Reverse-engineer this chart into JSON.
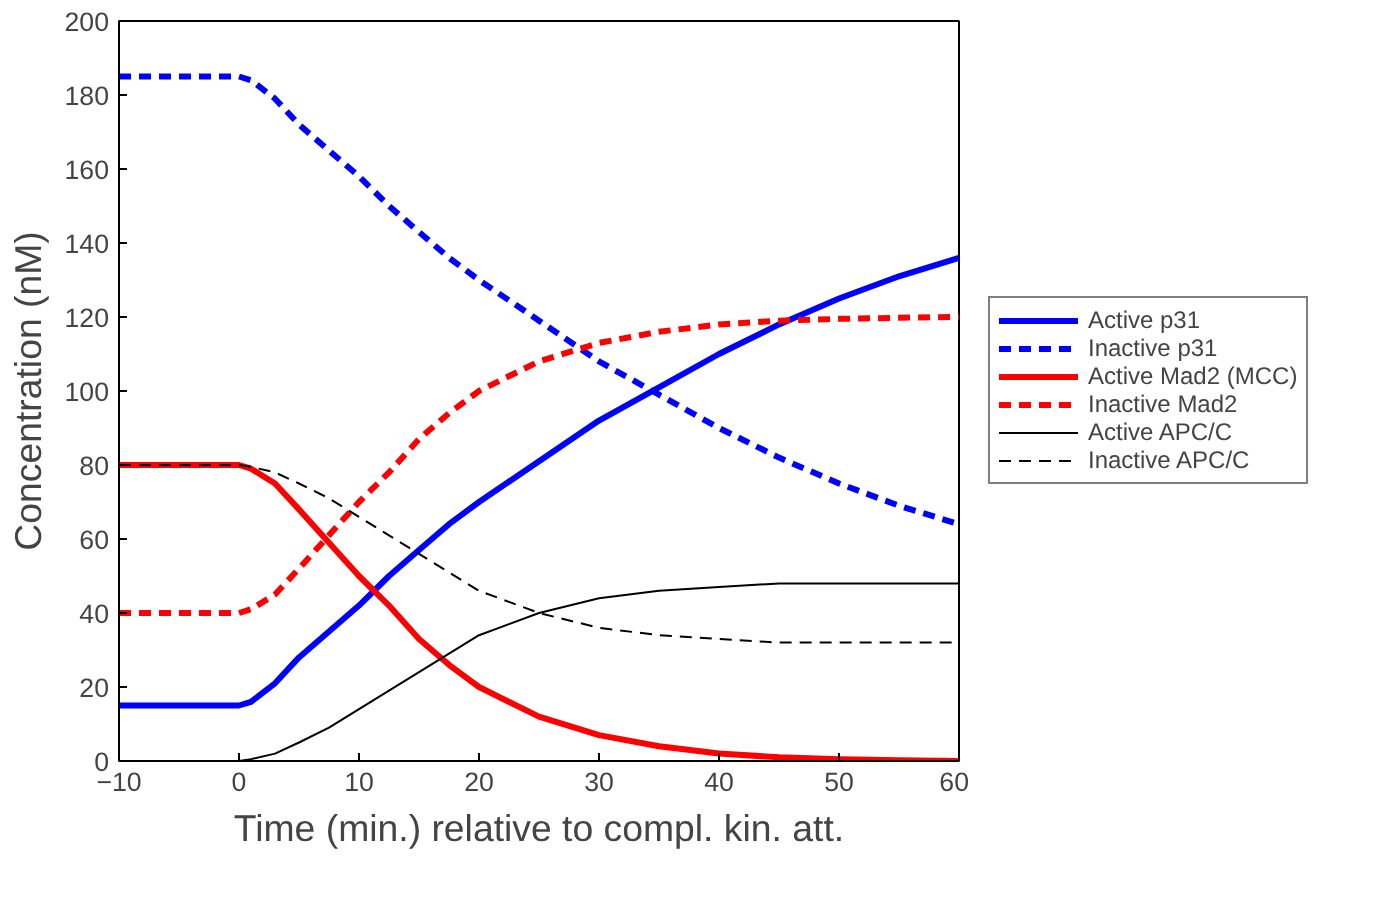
{
  "chart_data": {
    "type": "line",
    "xlabel": "Time (min.) relative to compl. kin. att.",
    "ylabel": "Concentration (nM)",
    "xlim": [
      -10,
      60
    ],
    "ylim": [
      0,
      200
    ],
    "xticks": [
      -10,
      0,
      10,
      20,
      30,
      40,
      50,
      60
    ],
    "yticks": [
      0,
      20,
      40,
      60,
      80,
      100,
      120,
      140,
      160,
      180,
      200
    ],
    "grid": false,
    "legend": "right",
    "marker": "none",
    "x": [
      -10,
      0,
      1,
      3,
      5,
      7.5,
      10,
      12.5,
      15,
      17.5,
      20,
      25,
      30,
      35,
      40,
      45,
      50,
      55,
      60
    ],
    "series": [
      {
        "name": "Active p31",
        "color": "#0000ff",
        "line_style": "solid",
        "values": [
          15,
          15,
          16,
          21,
          28,
          35,
          42,
          50,
          57,
          64,
          70,
          81,
          92,
          101,
          110,
          118,
          125,
          131,
          136
        ]
      },
      {
        "name": "Inactive p31",
        "color": "#0000ff",
        "line_style": "dashed",
        "values": [
          185,
          185,
          184,
          179,
          172,
          165,
          158,
          150,
          143,
          136,
          130,
          119,
          108,
          99,
          90,
          82,
          75,
          69,
          64
        ]
      },
      {
        "name": "Active Mad2 (MCC)",
        "color": "#ff0000",
        "line_style": "solid",
        "values": [
          80,
          80,
          79,
          75,
          68,
          59,
          50,
          42,
          33,
          26,
          20,
          12,
          7,
          4,
          2,
          1,
          0.5,
          0.2,
          0
        ]
      },
      {
        "name": "Inactive Mad2",
        "color": "#ff0000",
        "line_style": "dashed",
        "values": [
          40,
          40,
          41,
          45,
          52,
          61,
          70,
          78,
          87,
          94,
          100,
          108,
          113,
          116,
          118,
          119,
          119.5,
          119.8,
          120
        ]
      },
      {
        "name": "Active APC/C",
        "color": "#000000",
        "line_style": "solid",
        "values": [
          0,
          0,
          0.5,
          2,
          5,
          9,
          14,
          19,
          24,
          29,
          34,
          40,
          44,
          46,
          47,
          48,
          48,
          48,
          48
        ]
      },
      {
        "name": "Inactive APC/C",
        "color": "#000000",
        "line_style": "dashed",
        "values": [
          80,
          80,
          79.5,
          78,
          75,
          71,
          66,
          61,
          56,
          51,
          46,
          40,
          36,
          34,
          33,
          32,
          32,
          32,
          32
        ]
      }
    ]
  }
}
